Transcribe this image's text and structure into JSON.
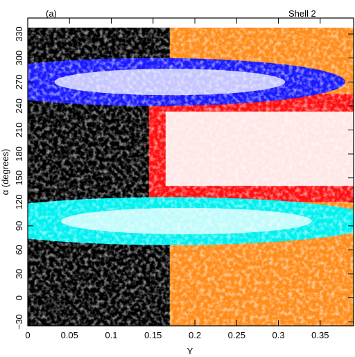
{
  "chart_data": {
    "type": "scatter",
    "panel_label": "(a)",
    "annotation": "Shell 2",
    "xlabel": "Y",
    "ylabel": "α (degrees)",
    "xlim": [
      0,
      0.39
    ],
    "ylim": [
      -35,
      350
    ],
    "x_ticks": [
      0,
      0.05,
      0.1,
      0.15,
      0.2,
      0.25,
      0.3,
      0.35
    ],
    "x_tick_labels": [
      "0",
      "0.05",
      "0.1",
      "0.15",
      "0.2",
      "0.25",
      "0.3",
      "0.35"
    ],
    "y_ticks": [
      -30,
      0,
      30,
      60,
      90,
      120,
      150,
      180,
      210,
      240,
      270,
      300,
      330
    ],
    "y_tick_labels": [
      "−30",
      "0",
      "30",
      "60",
      "90",
      "120",
      "150",
      "180",
      "210",
      "240",
      "270",
      "300",
      "330"
    ],
    "colors": {
      "black": "#000000",
      "blue": "#1a1aff",
      "cyan": "#00f0f0",
      "red": "#ff1010",
      "orange": "#ff8c1a",
      "white": "#ffffff"
    },
    "regions": [
      {
        "color": "black",
        "shape": "rect",
        "x": [
          0,
          0.17
        ],
        "y": [
          -35,
          338
        ]
      },
      {
        "color": "orange",
        "shape": "rect",
        "x": [
          0.17,
          0.39
        ],
        "y": [
          -35,
          338
        ]
      },
      {
        "color": "red",
        "shape": "band",
        "x": [
          0.145,
          0.39
        ],
        "y": [
          120,
          255
        ]
      },
      {
        "color": "blue",
        "shape": "lens",
        "cx": 0.15,
        "cy": 270,
        "rx": 0.23,
        "ry": 30
      },
      {
        "color": "cyan",
        "shape": "lens",
        "cx": 0.17,
        "cy": 96,
        "rx": 0.25,
        "ry": 30
      }
    ]
  }
}
